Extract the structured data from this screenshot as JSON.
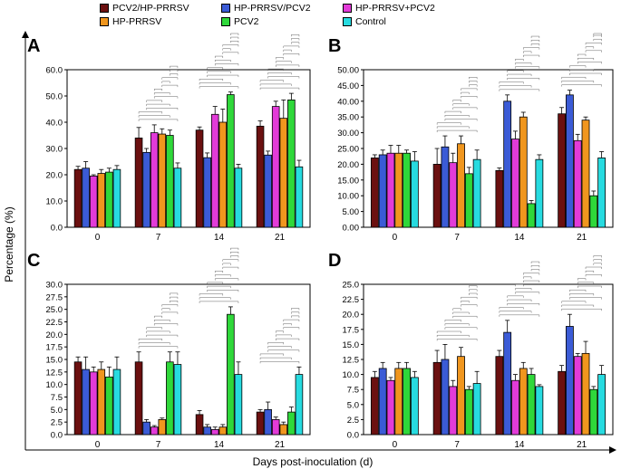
{
  "legend": {
    "items": [
      {
        "label": "PCV2/HP-PRRSV",
        "color": "#6b1010"
      },
      {
        "label": "HP-PRRSV/PCV2",
        "color": "#3b5bd6"
      },
      {
        "label": "HP-PRRSV+PCV2",
        "color": "#e23bd8"
      },
      {
        "label": "HP-PRRSV",
        "color": "#f0961e"
      },
      {
        "label": "PCV2",
        "color": "#2fd83a"
      },
      {
        "label": "Control",
        "color": "#27dbe0"
      }
    ]
  },
  "axes": {
    "ylabel": "Percentage (%)",
    "xlabel": "Days post-inoculation (d)"
  },
  "chart_data": [
    {
      "panel": "A",
      "type": "bar",
      "categories": [
        "0",
        "7",
        "14",
        "21"
      ],
      "ylim": [
        0,
        60
      ],
      "ytick_step": 10,
      "tick_decimals": 1,
      "series": [
        {
          "name": "PCV2/HP-PRRSV",
          "values": [
            22,
            34,
            37,
            38.5
          ],
          "errors": [
            1.2,
            4,
            1.2,
            2
          ]
        },
        {
          "name": "HP-PRRSV/PCV2",
          "values": [
            22.5,
            28.5,
            26.5,
            27.5
          ],
          "errors": [
            2.5,
            1.5,
            1.8,
            1.5
          ]
        },
        {
          "name": "HP-PRRSV+PCV2",
          "values": [
            19.5,
            36,
            43,
            46
          ],
          "errors": [
            0.5,
            3,
            3,
            2
          ]
        },
        {
          "name": "HP-PRRSV",
          "values": [
            20.5,
            35.5,
            40,
            41.5
          ],
          "errors": [
            1.5,
            2,
            5,
            7
          ]
        },
        {
          "name": "PCV2",
          "values": [
            21,
            35,
            50.5,
            48.5
          ],
          "errors": [
            1.5,
            2,
            1,
            2.5
          ]
        },
        {
          "name": "Control",
          "values": [
            22,
            22.5,
            22.5,
            23
          ],
          "errors": [
            1.5,
            2,
            1.5,
            2.5
          ]
        }
      ],
      "brackets": [
        [
          9,
          11,
          13,
          9,
          9
        ],
        [
          9,
          9,
          11,
          9,
          9
        ],
        [
          9,
          7,
          9,
          11,
          11
        ]
      ]
    },
    {
      "panel": "B",
      "type": "bar",
      "categories": [
        "0",
        "7",
        "14",
        "21"
      ],
      "ylim": [
        0,
        50
      ],
      "ytick_step": 5,
      "tick_decimals": 2,
      "series": [
        {
          "name": "PCV2/HP-PRRSV",
          "values": [
            22,
            20,
            18,
            36
          ],
          "errors": [
            1,
            5,
            0.8,
            2
          ]
        },
        {
          "name": "HP-PRRSV/PCV2",
          "values": [
            23,
            25.5,
            40,
            42
          ],
          "errors": [
            1.5,
            3.5,
            2,
            1.5
          ]
        },
        {
          "name": "HP-PRRSV+PCV2",
          "values": [
            23.5,
            20.5,
            28,
            27.5
          ],
          "errors": [
            2.5,
            3,
            2.5,
            2
          ]
        },
        {
          "name": "HP-PRRSV",
          "values": [
            23.5,
            26.5,
            35,
            34
          ],
          "errors": [
            2.5,
            2.5,
            1.5,
            1
          ]
        },
        {
          "name": "PCV2",
          "values": [
            23.5,
            17,
            7.5,
            10
          ],
          "errors": [
            1,
            2,
            1,
            1.5
          ]
        },
        {
          "name": "Control",
          "values": [
            21,
            21.5,
            21.5,
            22
          ],
          "errors": [
            3,
            3,
            1.5,
            2
          ]
        }
      ],
      "brackets": [
        [
          9,
          11,
          9,
          9,
          9
        ],
        [
          7,
          7,
          7,
          9,
          9
        ],
        [
          9,
          7,
          7,
          11,
          9
        ]
      ]
    },
    {
      "panel": "C",
      "type": "bar",
      "categories": [
        "0",
        "7",
        "14",
        "21"
      ],
      "ylim": [
        0,
        30
      ],
      "ytick_step": 2.5,
      "tick_decimals": 1,
      "series": [
        {
          "name": "PCV2/HP-PRRSV",
          "values": [
            14.5,
            14.5,
            4,
            4.5
          ],
          "errors": [
            1,
            2,
            0.8,
            0.5
          ]
        },
        {
          "name": "HP-PRRSV/PCV2",
          "values": [
            13,
            2.5,
            1.5,
            5
          ],
          "errors": [
            2.5,
            0.5,
            0.5,
            1.5
          ]
        },
        {
          "name": "HP-PRRSV+PCV2",
          "values": [
            12.5,
            1.5,
            1,
            3
          ],
          "errors": [
            1,
            0.3,
            0.5,
            0.5
          ]
        },
        {
          "name": "HP-PRRSV",
          "values": [
            13,
            3,
            1.5,
            2
          ],
          "errors": [
            1.5,
            0.3,
            0.5,
            0.5
          ]
        },
        {
          "name": "PCV2",
          "values": [
            11.5,
            14.5,
            24,
            4.5
          ],
          "errors": [
            2,
            2,
            1.5,
            1
          ]
        },
        {
          "name": "Control",
          "values": [
            13,
            14,
            12,
            12
          ],
          "errors": [
            2.5,
            2.5,
            2.5,
            1.5
          ]
        }
      ],
      "brackets": [
        [
          9,
          7,
          7,
          9,
          9
        ],
        [
          7,
          7,
          7,
          11,
          9
        ],
        [
          9,
          7,
          9,
          7,
          9
        ]
      ]
    },
    {
      "panel": "D",
      "type": "bar",
      "categories": [
        "0",
        "7",
        "14",
        "21"
      ],
      "ylim": [
        0,
        25
      ],
      "ytick_step": 2.5,
      "tick_decimals": 1,
      "series": [
        {
          "name": "PCV2/HP-PRRSV",
          "values": [
            9.5,
            12,
            13,
            10.5
          ],
          "errors": [
            1,
            2,
            1,
            1
          ]
        },
        {
          "name": "HP-PRRSV/PCV2",
          "values": [
            11,
            12.5,
            17,
            18
          ],
          "errors": [
            1,
            2.5,
            2,
            2
          ]
        },
        {
          "name": "HP-PRRSV+PCV2",
          "values": [
            9,
            8,
            9,
            13
          ],
          "errors": [
            0.5,
            1,
            1,
            0.5
          ]
        },
        {
          "name": "HP-PRRSV",
          "values": [
            11,
            13,
            11,
            13.5
          ],
          "errors": [
            1,
            1.5,
            1,
            2
          ]
        },
        {
          "name": "PCV2",
          "values": [
            11,
            7.5,
            10,
            7.5
          ],
          "errors": [
            1,
            0.5,
            1,
            0.5
          ]
        },
        {
          "name": "Control",
          "values": [
            9.5,
            8.5,
            8,
            10
          ],
          "errors": [
            1,
            2,
            0.3,
            1.5
          ]
        }
      ],
      "brackets": [
        [
          9,
          9,
          11,
          9,
          9
        ],
        [
          9,
          9,
          11,
          9,
          7
        ],
        [
          7,
          9,
          7,
          9,
          9
        ]
      ]
    }
  ]
}
